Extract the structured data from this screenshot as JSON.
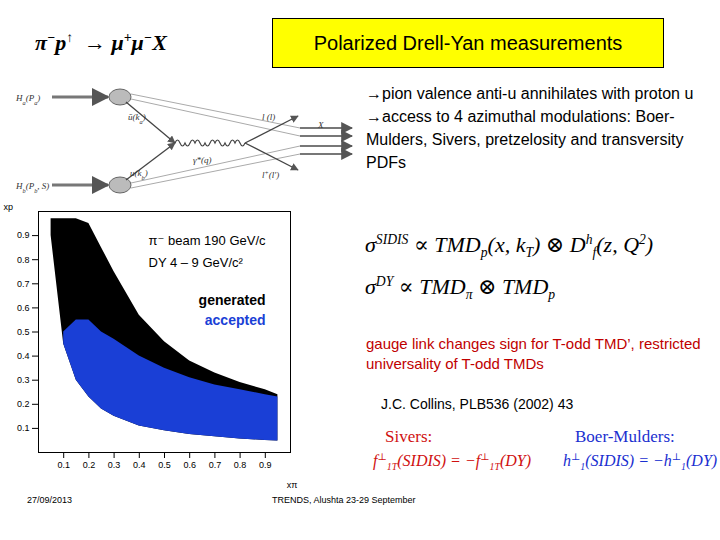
{
  "header": {
    "formula": [
      {
        "t": "π"
      },
      {
        "sup": "−"
      },
      {
        "t": "p"
      },
      {
        "sup": "↑"
      },
      {
        "t": "  → μ"
      },
      {
        "sup": "+"
      },
      {
        "t": "μ"
      },
      {
        "sup": "−"
      },
      {
        "t": "X"
      }
    ],
    "title": "Polarized Drell-Yan measurements"
  },
  "diagram": {
    "labels": [
      [
        {
          "t": "H"
        },
        {
          "sub": "a"
        },
        {
          "t": "(P"
        },
        {
          "sub": "a"
        },
        {
          "t": ")"
        }
      ],
      [
        {
          "t": "H"
        },
        {
          "sub": "b"
        },
        {
          "t": "(P"
        },
        {
          "sub": "b"
        },
        {
          "t": ", S)"
        }
      ],
      [
        {
          "t": "ū(k"
        },
        {
          "sub": "a"
        },
        {
          "t": ")"
        }
      ],
      [
        {
          "t": "u(k"
        },
        {
          "sub": "b"
        },
        {
          "t": ")"
        }
      ],
      [
        {
          "t": "γ*(q)"
        }
      ],
      [
        {
          "t": "l (l)"
        }
      ],
      [
        {
          "t": "l"
        },
        {
          "sup": "+"
        },
        {
          "t": "(l′)"
        }
      ],
      [
        {
          "t": "X"
        }
      ]
    ]
  },
  "bullets": [
    "→pion valence anti-u annihilates with proton u",
    "→access to 4 azimuthal modulations: Boer-Mulders, Sivers, pretzelosity and transversity PDFs"
  ],
  "formulas": [
    [
      {
        "t": "σ"
      },
      {
        "sup": "SIDIS"
      },
      {
        "t": " ∝ TMD"
      },
      {
        "sub": "p"
      },
      {
        "t": "(x, k"
      },
      {
        "sub": "T"
      },
      {
        "t": ") ⊗ D"
      },
      {
        "sup": "h"
      },
      {
        "sub": "f"
      },
      {
        "t": "(z, Q"
      },
      {
        "sup": "2"
      },
      {
        "t": ")"
      }
    ],
    [
      {
        "t": "σ"
      },
      {
        "sup": "DY"
      },
      {
        "t": " ∝ TMD"
      },
      {
        "sub": "π"
      },
      {
        "t": " ⊗ TMD"
      },
      {
        "sub": "p"
      }
    ]
  ],
  "note": "gauge link changes sign for T-odd TMD’, restricted universality of T-odd TMDs",
  "reference": "J.C. Collins, PLB536 (2002) 43",
  "relations": [
    {
      "name": "Sivers:",
      "color": "#d01010",
      "formula": [
        {
          "t": "f"
        },
        {
          "sup": "⊥"
        },
        {
          "sub": "1T"
        },
        {
          "t": "(SIDIS) = −f"
        },
        {
          "sup": "⊥"
        },
        {
          "sub": "1T"
        },
        {
          "t": "(DY)"
        }
      ]
    },
    {
      "name": "Boer-Mulders:",
      "color": "#1a2fd0",
      "formula": [
        {
          "t": "h"
        },
        {
          "sup": "⊥"
        },
        {
          "sub": "1"
        },
        {
          "t": "(SIDIS) = −h"
        },
        {
          "sup": "⊥"
        },
        {
          "sub": "1"
        },
        {
          "t": "(DY)"
        }
      ]
    }
  ],
  "footer": {
    "date": "27/09/2013",
    "event": "TRENDS, Alushta 23-29 September"
  },
  "chart_data": {
    "type": "area",
    "xlabel": "xπ",
    "ylabel": "xp",
    "xlim": [
      0,
      1
    ],
    "ylim": [
      0,
      1
    ],
    "xticks": [
      0.1,
      0.2,
      0.3,
      0.4,
      0.5,
      0.6,
      0.7,
      0.8,
      0.9
    ],
    "yticks": [
      0.1,
      0.2,
      0.3,
      0.4,
      0.5,
      0.6,
      0.7,
      0.8,
      0.9
    ],
    "annotations": [
      "π⁻ beam 190 GeV/c",
      "DY 4 – 9 GeV/c²"
    ],
    "legend": "right",
    "series": [
      {
        "name": "generated",
        "color": "#000000",
        "x": [
          0.05,
          0.1,
          0.15,
          0.2,
          0.25,
          0.3,
          0.4,
          0.5,
          0.6,
          0.7,
          0.8,
          0.9,
          0.95
        ],
        "upper": [
          0.97,
          0.97,
          0.97,
          0.95,
          0.85,
          0.75,
          0.57,
          0.46,
          0.38,
          0.33,
          0.29,
          0.26,
          0.24
        ],
        "lower": [
          0.9,
          0.45,
          0.3,
          0.23,
          0.18,
          0.15,
          0.11,
          0.09,
          0.075,
          0.065,
          0.056,
          0.05,
          0.048
        ]
      },
      {
        "name": "accepted",
        "color": "#1a3fd6",
        "x": [
          0.1,
          0.15,
          0.2,
          0.25,
          0.3,
          0.4,
          0.5,
          0.6,
          0.7,
          0.8,
          0.9,
          0.95
        ],
        "upper": [
          0.5,
          0.55,
          0.55,
          0.5,
          0.47,
          0.4,
          0.35,
          0.31,
          0.28,
          0.26,
          0.24,
          0.23
        ],
        "lower": [
          0.45,
          0.3,
          0.23,
          0.18,
          0.15,
          0.11,
          0.09,
          0.075,
          0.065,
          0.056,
          0.05,
          0.048
        ]
      }
    ]
  }
}
